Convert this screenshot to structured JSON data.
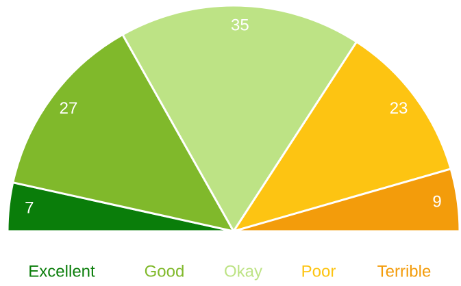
{
  "chart_data": {
    "type": "pie",
    "categories": [
      "Excellent",
      "Good",
      "Okay",
      "Poor",
      "Terrible"
    ],
    "values": [
      7,
      27,
      35,
      23,
      9
    ],
    "colors": [
      "#0a7d0a",
      "#80b92b",
      "#bde385",
      "#fdc412",
      "#f39c0b"
    ]
  }
}
